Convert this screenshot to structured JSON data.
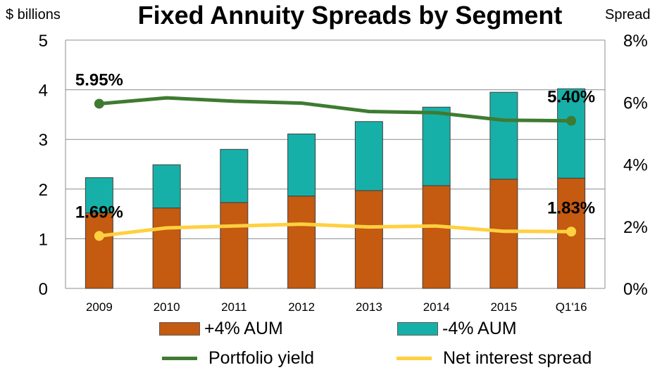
{
  "chart_data": {
    "type": "bar",
    "title": "Fixed Annuity Spreads by Segment",
    "left_axis_unit": "$ billions",
    "right_axis_unit": "Spread",
    "categories": [
      "2009",
      "2010",
      "2011",
      "2012",
      "2013",
      "2014",
      "2015",
      "Q1'16"
    ],
    "y_ticks": [
      "0",
      "1",
      "2",
      "3",
      "4",
      "5"
    ],
    "y2_ticks": [
      "0%",
      "2%",
      "4%",
      "6%",
      "8%"
    ],
    "ylim": [
      0,
      5
    ],
    "y2lim": [
      0,
      8
    ],
    "grid": true,
    "stacked_series": [
      {
        "name": "+4% AUM",
        "color": "#c55a11",
        "values": [
          1.52,
          1.62,
          1.73,
          1.86,
          1.97,
          2.07,
          2.2,
          2.22
        ]
      },
      {
        "name": "-4% AUM",
        "color": "#17b0a8",
        "values": [
          0.71,
          0.87,
          1.07,
          1.25,
          1.39,
          1.58,
          1.75,
          1.8
        ]
      }
    ],
    "line_series": [
      {
        "name": "Portfolio yield",
        "color": "#3e7b32",
        "axis": "right",
        "values": [
          5.95,
          6.14,
          6.03,
          5.97,
          5.7,
          5.66,
          5.42,
          5.4
        ],
        "labels": [
          {
            "index": 0,
            "text": "5.95%"
          },
          {
            "index": 7,
            "text": "5.40%"
          }
        ]
      },
      {
        "name": "Net interest spread",
        "color": "#ffd040",
        "axis": "right",
        "values": [
          1.69,
          1.95,
          2.01,
          2.07,
          1.98,
          2.01,
          1.84,
          1.83
        ],
        "labels": [
          {
            "index": 0,
            "text": "1.69%"
          },
          {
            "index": 7,
            "text": "1.83%"
          }
        ]
      }
    ],
    "legend_position": "bottom"
  }
}
